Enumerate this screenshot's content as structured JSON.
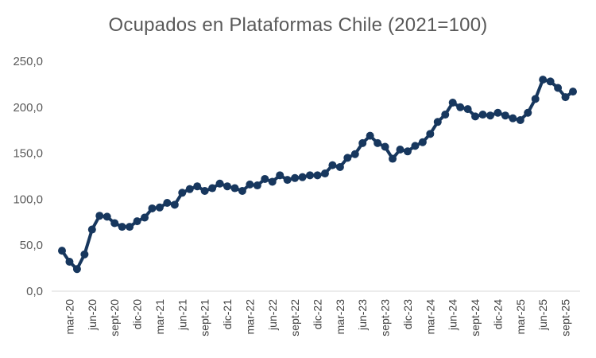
{
  "chart_data": {
    "type": "line",
    "title": "Ocupados en Plataformas Chile (2021=100)",
    "xlabel": "",
    "ylabel": "",
    "ylim": [
      0,
      250
    ],
    "yticks": [
      "0,0",
      "50,0",
      "100,0",
      "150,0",
      "200,0",
      "250,0"
    ],
    "grid": false,
    "legend": "none",
    "color": "#17375e",
    "x": [
      "feb-20",
      "mar-20",
      "abr-20",
      "may-20",
      "jun-20",
      "jul-20",
      "ago-20",
      "sept-20",
      "oct-20",
      "nov-20",
      "dic-20",
      "ene-21",
      "feb-21",
      "mar-21",
      "abr-21",
      "may-21",
      "jun-21",
      "jul-21",
      "ago-21",
      "sept-21",
      "oct-21",
      "nov-21",
      "dic-21",
      "ene-22",
      "feb-22",
      "mar-22",
      "abr-22",
      "may-22",
      "jun-22",
      "jul-22",
      "ago-22",
      "sept-22",
      "oct-22",
      "nov-22",
      "dic-22",
      "ene-23",
      "feb-23",
      "mar-23",
      "abr-23",
      "may-23",
      "jun-23",
      "jul-23",
      "ago-23",
      "sept-23",
      "oct-23",
      "nov-23",
      "dic-23",
      "ene-24",
      "feb-24",
      "mar-24",
      "abr-24",
      "may-24",
      "jun-24",
      "jul-24",
      "ago-24",
      "sept-24",
      "oct-24",
      "nov-24",
      "dic-24",
      "ene-25",
      "feb-25",
      "mar-25",
      "abr-25",
      "may-25",
      "jun-25",
      "jul-25",
      "ago-25",
      "sept-25",
      "oct-25"
    ],
    "x_tick_labels": [
      {
        "label": "mar-20",
        "index": 1
      },
      {
        "label": "jun-20",
        "index": 4
      },
      {
        "label": "sept-20",
        "index": 7
      },
      {
        "label": "dic-20",
        "index": 10
      },
      {
        "label": "mar-21",
        "index": 13
      },
      {
        "label": "jun-21",
        "index": 16
      },
      {
        "label": "sept-21",
        "index": 19
      },
      {
        "label": "dic-21",
        "index": 22
      },
      {
        "label": "mar-22",
        "index": 25
      },
      {
        "label": "jun-22",
        "index": 28
      },
      {
        "label": "sept-22",
        "index": 31
      },
      {
        "label": "dic-22",
        "index": 34
      },
      {
        "label": "mar-23",
        "index": 37
      },
      {
        "label": "jun-23",
        "index": 40
      },
      {
        "label": "sept-23",
        "index": 43
      },
      {
        "label": "dic-23",
        "index": 46
      },
      {
        "label": "mar-24",
        "index": 49
      },
      {
        "label": "jun-24",
        "index": 52
      },
      {
        "label": "sept-24",
        "index": 55
      },
      {
        "label": "dic-24",
        "index": 58
      },
      {
        "label": "mar-25",
        "index": 61
      },
      {
        "label": "jun-25",
        "index": 64
      },
      {
        "label": "sept-25",
        "index": 67
      }
    ],
    "series": [
      {
        "values": [
          44,
          32,
          24,
          40,
          67,
          82,
          81,
          74,
          70,
          70,
          76,
          80,
          90,
          91,
          96,
          94,
          107,
          111,
          114,
          109,
          112,
          117,
          114,
          112,
          109,
          116,
          115,
          122,
          119,
          126,
          121,
          123,
          124,
          126,
          126,
          128,
          137,
          135,
          145,
          149,
          161,
          169,
          161,
          157,
          144,
          154,
          152,
          158,
          162,
          171,
          184,
          192,
          205,
          200,
          198,
          190,
          192,
          191,
          194,
          191,
          188,
          186,
          194,
          209,
          230,
          228,
          221,
          211,
          217
        ]
      }
    ]
  }
}
